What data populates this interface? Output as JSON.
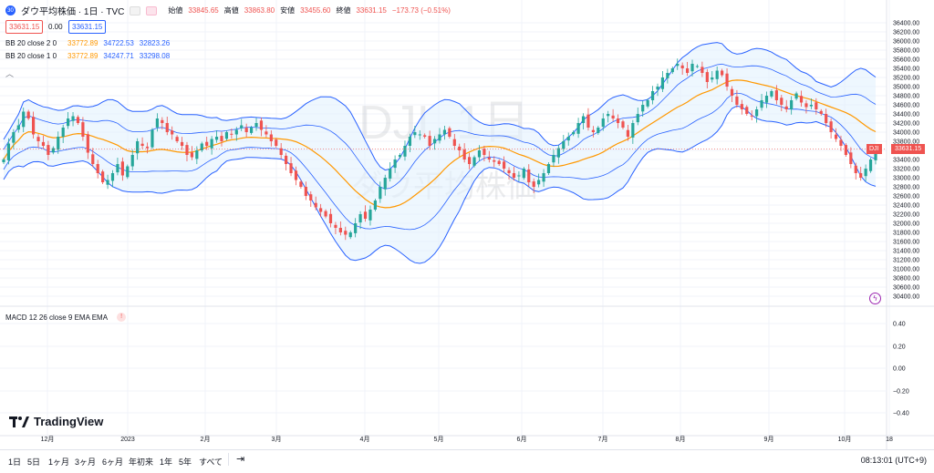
{
  "header": {
    "symbol_icon": "dji-symbol-icon",
    "title": "ダウ平均株価 · 1日 · TVC",
    "open_label": "始値",
    "open": "33845.65",
    "high_label": "高値",
    "high": "33863.80",
    "low_label": "安値",
    "low": "33455.60",
    "close_label": "終値",
    "close": "33631.15",
    "change": "−173.73 (−0.51%)",
    "bid": "33631.15",
    "spread": "0.00",
    "ask": "33631.15"
  },
  "indicators": [
    {
      "label": "BB 20 close 2 0",
      "v1": "33772.89",
      "v2": "34722.53",
      "v3": "32823.26"
    },
    {
      "label": "BB 20 close 1 0",
      "v1": "33772.89",
      "v2": "34247.71",
      "v3": "33298.08"
    }
  ],
  "macd_label": "MACD 12 26 close 9 EMA EMA",
  "watermark": {
    "line1": "DJI, 1日",
    "line2": "ダウ平均株価"
  },
  "last_price_tag": {
    "symbol": "DJI",
    "value": "33631.15"
  },
  "logo_text": "TradingView",
  "timeframes": [
    "1日",
    "5日",
    "1ヶ月",
    "3ヶ月",
    "6ヶ月",
    "年初来",
    "1年",
    "5年",
    "すべて"
  ],
  "clock": "08:13:01 (UTC+9)",
  "colors": {
    "up": "#26a69a",
    "down": "#ef5350",
    "basis": "#ff9800",
    "band": "#2962ff",
    "band_fill": "#e3f2fd"
  },
  "chart_data": {
    "type": "candlestick",
    "title": "ダウ平均株価 · 1日 · TVC",
    "x_ticks": [
      "12月",
      "2023",
      "2月",
      "3月",
      "4月",
      "5月",
      "6月",
      "7月",
      "8月",
      "9月",
      "10月",
      "18"
    ],
    "y_ticks": [
      36400,
      36200,
      36000,
      35800,
      35600,
      35400,
      35200,
      35000,
      34800,
      34600,
      34400,
      34200,
      34000,
      33800,
      33600,
      33400,
      33200,
      33000,
      32800,
      32600,
      32400,
      32200,
      32000,
      31800,
      31600,
      31400,
      31200,
      31000,
      30800,
      30600,
      30400
    ],
    "ylim": [
      30280,
      36520
    ],
    "macd_y_ticks": [
      "0.40",
      "0.20",
      "0.00",
      "−0.20",
      "−0.40"
    ],
    "closes": [
      33400,
      33750,
      34000,
      34150,
      34450,
      34300,
      33950,
      33800,
      33700,
      33500,
      33650,
      33900,
      34100,
      34300,
      34350,
      34200,
      33900,
      33550,
      33300,
      33100,
      32900,
      32950,
      33100,
      33300,
      33050,
      33250,
      33500,
      33800,
      33700,
      33650,
      34050,
      34300,
      34200,
      34000,
      33950,
      33800,
      33700,
      33500,
      33450,
      33600,
      33750,
      33700,
      33850,
      33900,
      33800,
      34000,
      33950,
      34050,
      34150,
      34000,
      34100,
      34200,
      34050,
      33950,
      33800,
      33700,
      33500,
      33300,
      33100,
      32950,
      32800,
      32600,
      32500,
      32350,
      32250,
      32150,
      32000,
      31900,
      31800,
      31750,
      31800,
      32000,
      32200,
      32100,
      32300,
      32500,
      32800,
      33000,
      33200,
      33400,
      33500,
      33700,
      33900,
      34000,
      33950,
      33900,
      33700,
      33850,
      33950,
      34050,
      33900,
      33700,
      33600,
      33400,
      33300,
      33450,
      33600,
      33500,
      33400,
      33350,
      33300,
      33200,
      33100,
      33000,
      33050,
      33200,
      32900,
      32800,
      32950,
      33100,
      33300,
      33500,
      33650,
      33800,
      33900,
      34000,
      34200,
      34350,
      34100,
      34000,
      34100,
      34300,
      34400,
      34300,
      34200,
      34100,
      33900,
      34200,
      34400,
      34600,
      34700,
      34900,
      35000,
      35200,
      35300,
      35400,
      35500,
      35400,
      35300,
      35500,
      35450,
      35300,
      35100,
      35200,
      35350,
      35250,
      35000,
      34800,
      34600,
      34500,
      34400,
      34350,
      34500,
      34700,
      34800,
      34900,
      34700,
      34600,
      34500,
      34700,
      34850,
      34650,
      34550,
      34600,
      34500,
      34400,
      34200,
      34000,
      33850,
      33700,
      33500,
      33300,
      33100,
      33000,
      33200,
      33400,
      33600
    ],
    "last_value": 33631.15,
    "series": [
      {
        "name": "BB 20 close 2 0 basis",
        "value": 33772.89
      },
      {
        "name": "BB 20 close 2 0 upper",
        "value": 34722.53
      },
      {
        "name": "BB 20 close 2 0 lower",
        "value": 32823.26
      },
      {
        "name": "BB 20 close 1 0 upper",
        "value": 34247.71
      },
      {
        "name": "BB 20 close 1 0 lower",
        "value": 33298.08
      }
    ]
  }
}
